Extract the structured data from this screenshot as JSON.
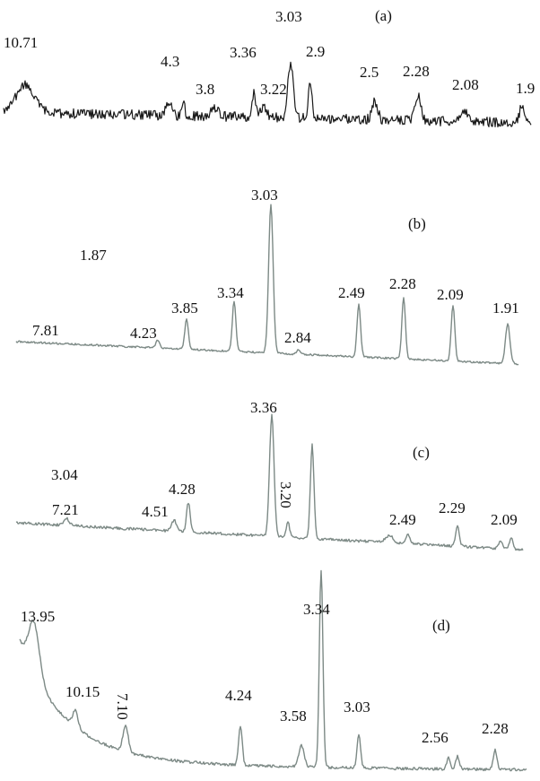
{
  "chart_data": [
    {
      "type": "line",
      "panel_label": "(a)",
      "trace_color": "#1a1a1a",
      "peak_labels": [
        "10.71",
        "4.3",
        "3.8",
        "3.36",
        "3.22",
        "3.03",
        "2.9",
        "2.5",
        "2.28",
        "2.08",
        "1.9"
      ]
    },
    {
      "type": "line",
      "panel_label": "(b)",
      "trace_color": "#7d8a86",
      "peak_labels": [
        "1.87",
        "7.81",
        "4.23",
        "3.85",
        "3.34",
        "3.03",
        "2.84",
        "2.49",
        "2.28",
        "2.09",
        "1.91"
      ]
    },
    {
      "type": "line",
      "panel_label": "(c)",
      "trace_color": "#7d8a86",
      "peak_labels": [
        "3.04",
        "7.21",
        "4.51",
        "4.28",
        "3.36",
        "3.20",
        "2.49",
        "2.29",
        "2.09"
      ]
    },
    {
      "type": "line",
      "panel_label": "(d)",
      "trace_color": "#7d8a86",
      "peak_labels": [
        "13.95",
        "10.15",
        "7.10",
        "4.24",
        "3.58",
        "3.34",
        "3.03",
        "2.56",
        "2.28"
      ]
    }
  ]
}
